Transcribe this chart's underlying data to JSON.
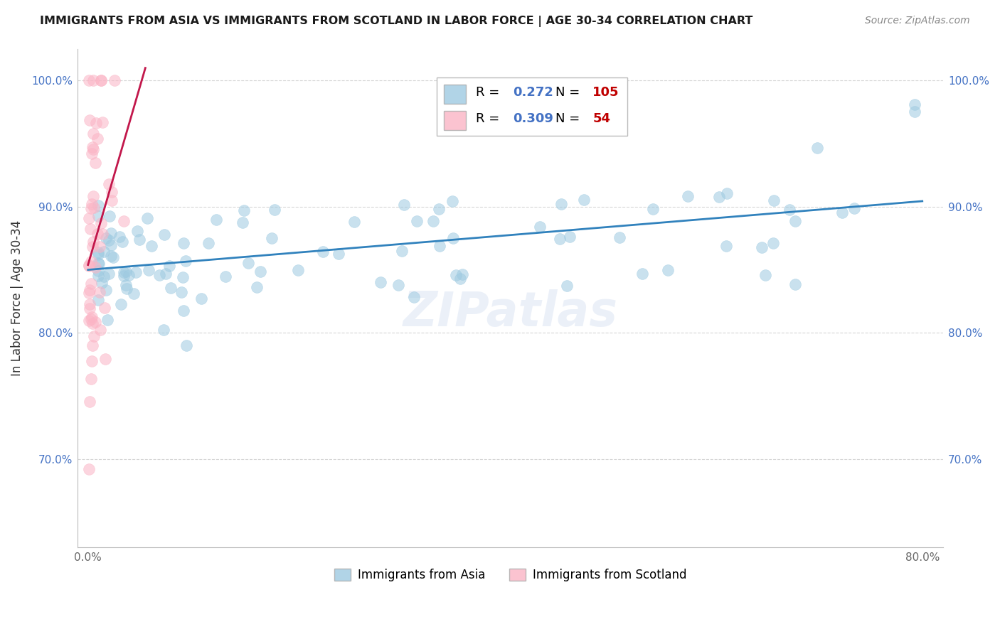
{
  "title": "IMMIGRANTS FROM ASIA VS IMMIGRANTS FROM SCOTLAND IN LABOR FORCE | AGE 30-34 CORRELATION CHART",
  "source": "Source: ZipAtlas.com",
  "ylabel": "In Labor Force | Age 30-34",
  "xlim": [
    -0.01,
    0.82
  ],
  "ylim": [
    0.63,
    1.025
  ],
  "x_ticks": [
    0.0,
    0.1,
    0.2,
    0.3,
    0.4,
    0.5,
    0.6,
    0.7,
    0.8
  ],
  "x_tick_labels": [
    "0.0%",
    "",
    "",
    "",
    "",
    "",
    "",
    "",
    "80.0%"
  ],
  "y_ticks": [
    0.7,
    0.8,
    0.9,
    1.0
  ],
  "y_tick_labels": [
    "70.0%",
    "80.0%",
    "90.0%",
    "100.0%"
  ],
  "blue_scatter_color": "#9ecae1",
  "blue_line_color": "#3182bd",
  "pink_scatter_color": "#fbb4c5",
  "pink_line_color": "#c2174b",
  "R_blue": 0.272,
  "N_blue": 105,
  "R_pink": 0.309,
  "N_pink": 54,
  "legend_label_blue": "Immigrants from Asia",
  "legend_label_pink": "Immigrants from Scotland",
  "watermark": "ZIPatlas",
  "stat_color": "#4472c4",
  "stat_n_color": "#c00000",
  "background": "#ffffff",
  "grid_color": "#cccccc",
  "title_color": "#1a1a1a",
  "source_color": "#888888",
  "ylabel_color": "#333333",
  "tick_color": "#4472c4",
  "xtick_color": "#666666"
}
